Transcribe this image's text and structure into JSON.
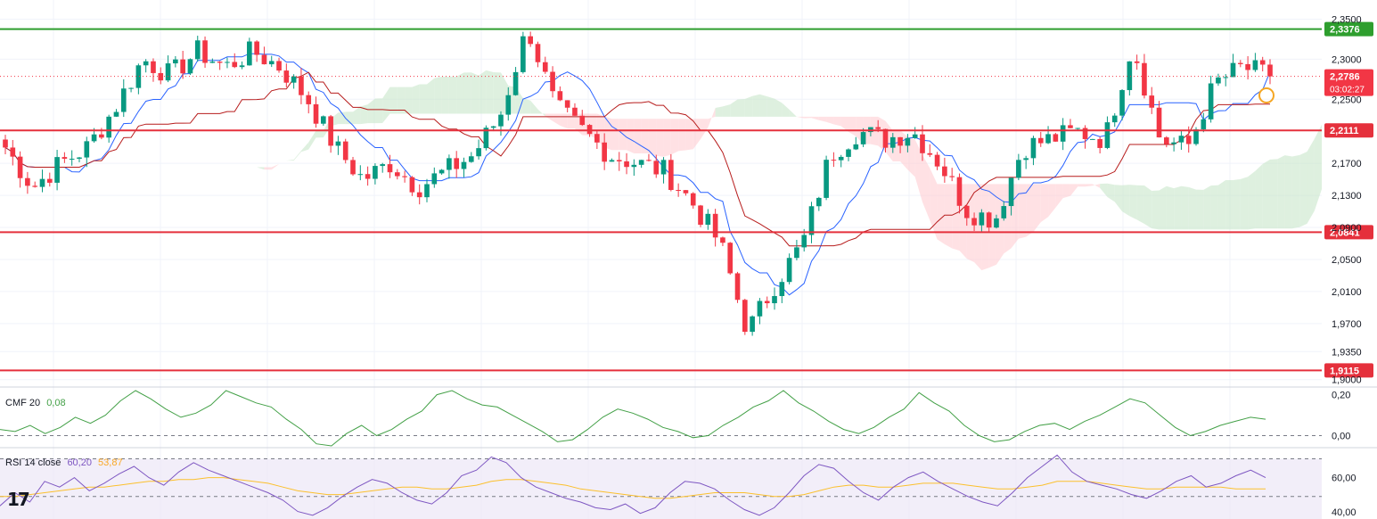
{
  "chart_data": [
    {
      "type": "candlestick",
      "pane": "price",
      "ylim": [
        1.893,
        2.365
      ],
      "y_ticks": [
        "2,3500",
        "2,3000",
        "2,2500",
        "2,1700",
        "2,1300",
        "2,0900",
        "2,0500",
        "2,0100",
        "1,9700",
        "1,9350",
        "1,9000"
      ],
      "horizontal_levels": [
        {
          "value": 2.3376,
          "label": "2,3376",
          "color": "#2e9e2e"
        },
        {
          "value": 2.2111,
          "label": "2,2111",
          "color": "#e5303c"
        },
        {
          "value": 2.0841,
          "label": "2,0841",
          "color": "#e5303c"
        },
        {
          "value": 1.9115,
          "label": "1,9115",
          "color": "#e5303c"
        }
      ],
      "last_price": {
        "value": 2.2786,
        "label": "2,2786",
        "countdown": "03:02:27",
        "color": "#f23645"
      },
      "indicators": [
        "Ichimoku Cloud",
        "Tenkan-sen",
        "Kijun-sen"
      ],
      "colors": {
        "up": "#089981",
        "down": "#f23645",
        "tenkan": "#2962ff",
        "kijun": "#b71c1c",
        "cloud_bull": "#c8e6c9",
        "cloud_bear": "#ffcdd2"
      },
      "grid": true,
      "approx_close_path": [
        2.19,
        2.14,
        2.17,
        2.19,
        2.24,
        2.3,
        2.28,
        2.31,
        2.29,
        2.31,
        2.29,
        2.25,
        2.19,
        2.15,
        2.17,
        2.14,
        2.16,
        2.18,
        2.23,
        2.34,
        2.24,
        2.21,
        2.18,
        2.17,
        2.16,
        2.12,
        2.07,
        1.96,
        2.02,
        2.07,
        2.18,
        2.21,
        2.2,
        2.21,
        2.17,
        2.11,
        2.1,
        2.19,
        2.2,
        2.21,
        2.2,
        2.32,
        2.2,
        2.19,
        2.27,
        2.29,
        2.2786
      ]
    },
    {
      "type": "line",
      "pane": "CMF",
      "title": "CMF 20",
      "value_label": "0,08",
      "y_ticks": [
        "0,20",
        "0,00"
      ],
      "ylim": [
        -0.05,
        0.22
      ],
      "color": "#43a047",
      "series": [
        {
          "values": [
            0.03,
            0.02,
            0.05,
            0.01,
            0.04,
            0.09,
            0.06,
            0.1,
            0.17,
            0.22,
            0.18,
            0.13,
            0.09,
            0.11,
            0.15,
            0.22,
            0.19,
            0.16,
            0.14,
            0.08,
            0.03,
            -0.04,
            -0.05,
            0.01,
            0.05,
            0.0,
            0.03,
            0.08,
            0.12,
            0.2,
            0.22,
            0.18,
            0.15,
            0.14,
            0.1,
            0.06,
            0.02,
            -0.03,
            -0.02,
            0.03,
            0.09,
            0.13,
            0.11,
            0.08,
            0.04,
            0.02,
            -0.01,
            0.0,
            0.05,
            0.09,
            0.14,
            0.17,
            0.22,
            0.16,
            0.12,
            0.07,
            0.03,
            0.01,
            0.04,
            0.09,
            0.13,
            0.21,
            0.16,
            0.12,
            0.05,
            0.0,
            -0.03,
            -0.02,
            0.02,
            0.05,
            0.06,
            0.03,
            0.07,
            0.1,
            0.14,
            0.18,
            0.16,
            0.1,
            0.04,
            0.0,
            0.02,
            0.05,
            0.07,
            0.09,
            0.08
          ]
        }
      ]
    },
    {
      "type": "line",
      "pane": "RSI",
      "title": "RSI 14 close",
      "value_labels": [
        "60,20",
        "53,87"
      ],
      "y_ticks": [
        "60,00",
        "40,00"
      ],
      "ylim": [
        38,
        75
      ],
      "colors": {
        "rsi": "#7e57c2",
        "ma": "#fbc02d",
        "band": "#ede7f6"
      },
      "series": [
        {
          "values": [
            45,
            52,
            47,
            58,
            55,
            60,
            53,
            57,
            62,
            66,
            60,
            56,
            63,
            68,
            64,
            61,
            58,
            55,
            52,
            48,
            42,
            40,
            44,
            50,
            55,
            59,
            57,
            52,
            48,
            46,
            52,
            61,
            64,
            71,
            68,
            60,
            55,
            52,
            49,
            47,
            44,
            43,
            46,
            41,
            44,
            52,
            58,
            57,
            54,
            48,
            43,
            40,
            44,
            52,
            61,
            67,
            65,
            58,
            52,
            48,
            55,
            60,
            63,
            58,
            54,
            50,
            47,
            45,
            52,
            60,
            66,
            72,
            63,
            58,
            56,
            54,
            51,
            49,
            53,
            58,
            61,
            55,
            57,
            61,
            64,
            60
          ]
        },
        {
          "values": [
            50,
            50,
            51,
            52,
            53,
            54,
            55,
            55,
            56,
            57,
            58,
            58,
            59,
            59,
            60,
            60,
            59,
            58,
            57,
            55,
            53,
            52,
            51,
            51,
            52,
            53,
            54,
            55,
            55,
            54,
            54,
            55,
            56,
            58,
            59,
            59,
            58,
            57,
            56,
            54,
            53,
            52,
            51,
            50,
            49,
            49,
            50,
            51,
            52,
            52,
            52,
            51,
            50,
            50,
            51,
            53,
            55,
            56,
            56,
            55,
            55,
            56,
            57,
            57,
            57,
            56,
            55,
            54,
            54,
            55,
            56,
            58,
            58,
            58,
            57,
            56,
            55,
            54,
            54,
            55,
            55,
            55,
            55,
            54,
            54,
            54
          ]
        }
      ]
    }
  ],
  "branding": {
    "logo_text": "17"
  }
}
